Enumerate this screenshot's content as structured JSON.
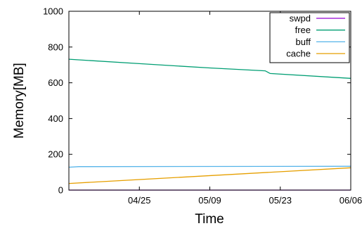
{
  "chart_data": {
    "type": "line",
    "xlabel": "Time",
    "ylabel": "Memory[MB]",
    "ylim": [
      0,
      1000
    ],
    "yticks": [
      0,
      200,
      400,
      600,
      800,
      1000
    ],
    "x_start": "04/11",
    "x_end": "06/06",
    "xticks": [
      "04/25",
      "05/09",
      "05/23",
      "06/06"
    ],
    "grid": false,
    "legend_position": "top-right",
    "series": [
      {
        "name": "swpd",
        "color": "#9400d3",
        "x": [
          "04/11",
          "06/06"
        ],
        "values": [
          0,
          0
        ]
      },
      {
        "name": "free",
        "color": "#009e73",
        "x": [
          "04/11",
          "04/25",
          "05/09",
          "05/20",
          "05/21",
          "06/06"
        ],
        "values": [
          732,
          707,
          683,
          667,
          652,
          625
        ]
      },
      {
        "name": "buff",
        "color": "#56b4e9",
        "x": [
          "04/11",
          "04/13",
          "06/06"
        ],
        "values": [
          128,
          131,
          133
        ]
      },
      {
        "name": "cache",
        "color": "#e69f00",
        "x": [
          "04/11",
          "06/06"
        ],
        "values": [
          37,
          125
        ]
      }
    ]
  }
}
